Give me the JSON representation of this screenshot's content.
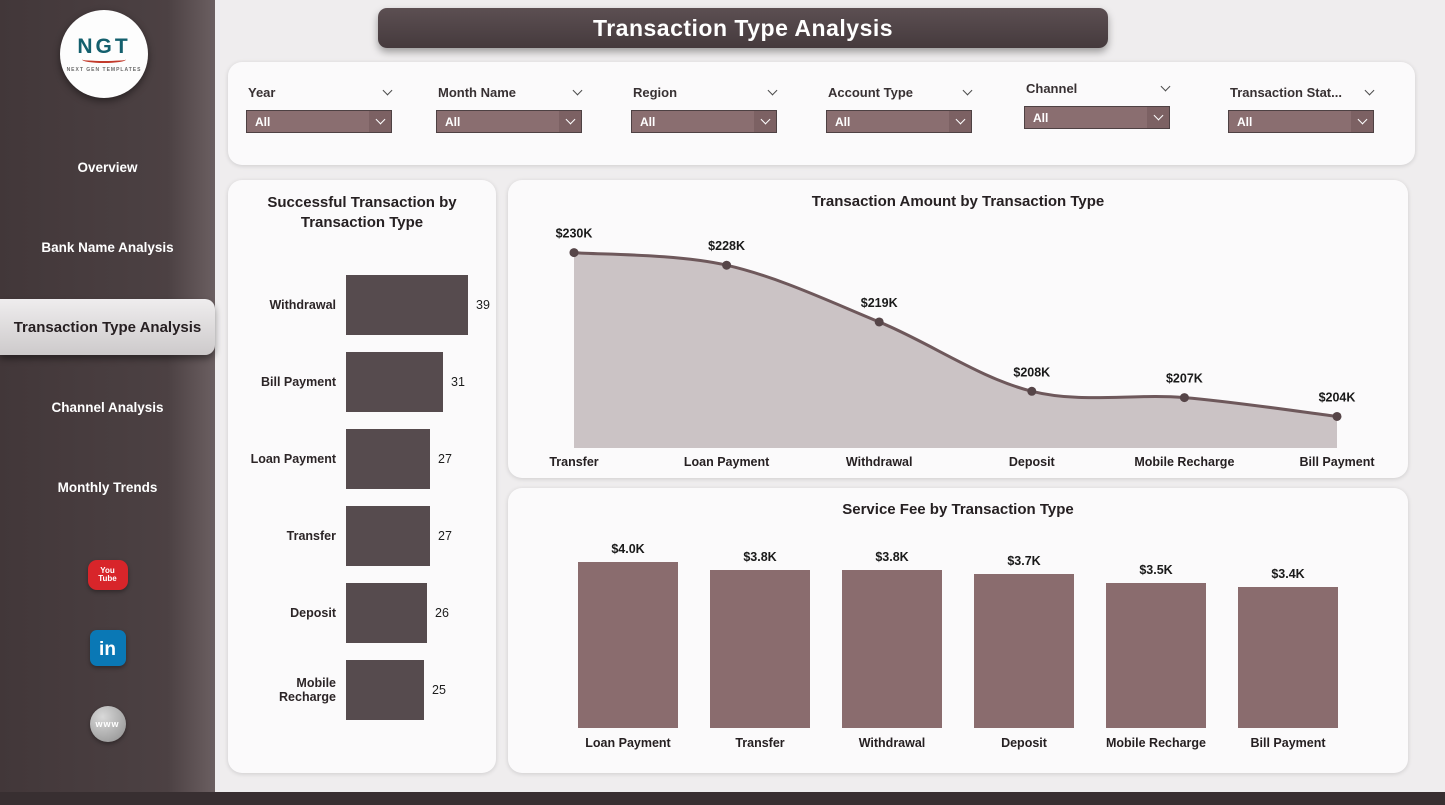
{
  "page_title": "Transaction Type Analysis",
  "sidebar": {
    "logo_text": "NGT",
    "logo_tagline": "NEXT GEN TEMPLATES",
    "items": [
      {
        "label": "Overview",
        "active": false
      },
      {
        "label": "Bank Name Analysis",
        "active": false
      },
      {
        "label": "Transaction Type Analysis",
        "active": true
      },
      {
        "label": "Channel Analysis",
        "active": false
      },
      {
        "label": "Monthly Trends",
        "active": false
      }
    ],
    "social_icons": [
      {
        "name": "youtube-icon",
        "glyph_line1": "You",
        "glyph_line2": "Tube"
      },
      {
        "name": "linkedin-icon",
        "glyph": "in"
      },
      {
        "name": "web-icon",
        "glyph": "www"
      }
    ]
  },
  "filters": [
    {
      "label": "Year",
      "value": "All"
    },
    {
      "label": "Month Name",
      "value": "All"
    },
    {
      "label": "Region",
      "value": "All"
    },
    {
      "label": "Account Type",
      "value": "All"
    },
    {
      "label": "Channel",
      "value": "All"
    },
    {
      "label": "Transaction Stat...",
      "value": "All"
    }
  ],
  "chart_data": [
    {
      "type": "bar",
      "orientation": "horizontal",
      "title": "Successful Transaction by Transaction Type",
      "categories": [
        "Withdrawal",
        "Bill Payment",
        "Loan Payment",
        "Transfer",
        "Deposit",
        "Mobile Recharge"
      ],
      "values": [
        39,
        31,
        27,
        27,
        26,
        25
      ],
      "xlim": [
        0,
        39
      ]
    },
    {
      "type": "area",
      "title": "Transaction Amount by Transaction Type",
      "categories": [
        "Transfer",
        "Loan Payment",
        "Withdrawal",
        "Deposit",
        "Mobile Recharge",
        "Bill Payment"
      ],
      "values": [
        230,
        228,
        219,
        208,
        207,
        204
      ],
      "labels": [
        "$230K",
        "$228K",
        "$219K",
        "$208K",
        "$207K",
        "$204K"
      ],
      "unit": "USD thousands",
      "ylim": [
        199,
        232
      ]
    },
    {
      "type": "bar",
      "orientation": "vertical",
      "title": "Service Fee by Transaction Type",
      "categories": [
        "Loan Payment",
        "Transfer",
        "Withdrawal",
        "Deposit",
        "Mobile Recharge",
        "Bill Payment"
      ],
      "values": [
        4.0,
        3.8,
        3.8,
        3.7,
        3.5,
        3.4
      ],
      "labels": [
        "$4.0K",
        "$3.8K",
        "$3.8K",
        "$3.7K",
        "$3.5K",
        "$3.4K"
      ],
      "unit": "USD thousands",
      "ylim": [
        0,
        4.0
      ]
    }
  ],
  "colors": {
    "sidebar_bg": "#4c4143",
    "banner_bg": "#4a3e41",
    "dark_bar": "#564b4e",
    "mauve_bar": "#8a6c6e",
    "area_fill": "#cbc3c5",
    "line": "#6e585b",
    "marker": "#564548",
    "dropdown": "#8a6e70",
    "youtube_red": "#d8252a",
    "linkedin_blue": "#0a78b5"
  }
}
